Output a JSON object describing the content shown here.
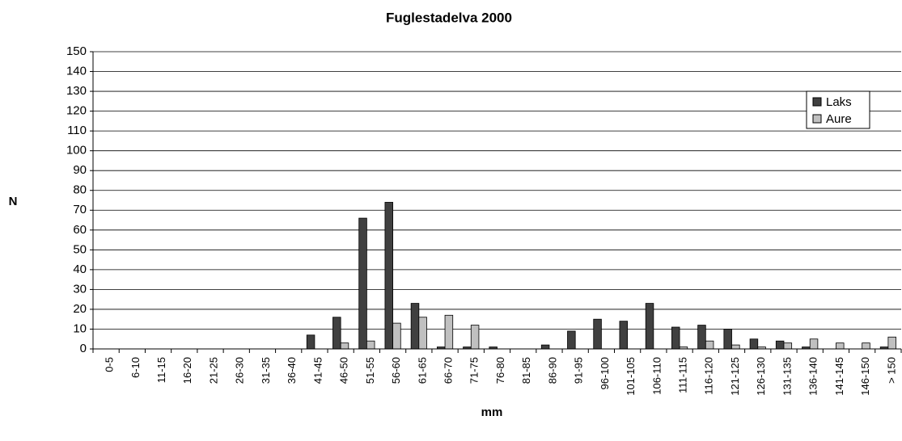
{
  "chart_data": {
    "type": "bar",
    "title": "Fuglestadelva 2000",
    "xlabel": "mm",
    "ylabel": "N",
    "categories": [
      "0-5",
      "6-10",
      "11-15",
      "16-20",
      "21-25",
      "26-30",
      "31-35",
      "36-40",
      "41-45",
      "46-50",
      "51-55",
      "56-60",
      "61-65",
      "66-70",
      "71-75",
      "76-80",
      "81-85",
      "86-90",
      "91-95",
      "96-100",
      "101-105",
      "106-110",
      "111-115",
      "116-120",
      "121-125",
      "126-130",
      "131-135",
      "136-140",
      "141-145",
      "146-150",
      "> 150"
    ],
    "series": [
      {
        "name": "Laks",
        "color": "#404040",
        "values": [
          0,
          0,
          0,
          0,
          0,
          0,
          0,
          0,
          7,
          16,
          66,
          74,
          23,
          1,
          1,
          1,
          0,
          2,
          9,
          15,
          14,
          23,
          11,
          12,
          10,
          5,
          4,
          1,
          0,
          0,
          1
        ]
      },
      {
        "name": "Aure",
        "color": "#c0c0c0",
        "values": [
          0,
          0,
          0,
          0,
          0,
          0,
          0,
          0,
          0,
          3,
          4,
          13,
          16,
          17,
          12,
          0,
          0,
          0,
          0,
          0,
          0,
          0,
          1,
          4,
          2,
          1,
          3,
          5,
          3,
          3,
          6
        ]
      }
    ],
    "ylim": [
      0,
      150
    ],
    "yticks": [
      0,
      10,
      20,
      30,
      40,
      50,
      60,
      70,
      80,
      90,
      100,
      110,
      120,
      130,
      140,
      150
    ],
    "grid": true,
    "legend": "upper right"
  }
}
